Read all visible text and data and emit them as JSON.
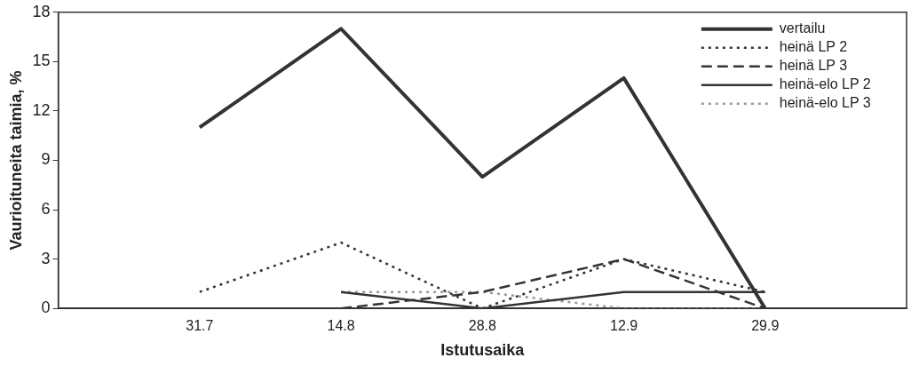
{
  "chart_data": {
    "type": "line",
    "xlabel": "Istutusaika",
    "ylabel": "Vaurioituneita taimia, %",
    "categories": [
      null,
      "31.7",
      "14.8",
      "28.8",
      "12.9",
      "29.9",
      null
    ],
    "series": [
      {
        "name": "vertailu",
        "color": "#333333",
        "line_style": "solid",
        "values": [
          null,
          11,
          17,
          8,
          14,
          0,
          null
        ]
      },
      {
        "name": "heinä LP 2",
        "color": "#333333",
        "line_style": "dotted",
        "values": [
          null,
          1,
          4,
          0,
          3,
          1,
          null
        ]
      },
      {
        "name": "heinä LP 3",
        "color": "#333333",
        "line_style": "dashed",
        "values": [
          null,
          null,
          0,
          1,
          3,
          0,
          null
        ]
      },
      {
        "name": "heinä-elo LP 2",
        "color": "#333333",
        "line_style": "solid",
        "values": [
          null,
          null,
          1,
          0,
          1,
          1,
          null
        ]
      },
      {
        "name": "heinä-elo LP 3",
        "color": "#999999",
        "line_style": "dotted",
        "values": [
          null,
          null,
          1,
          1,
          0,
          0,
          null
        ]
      }
    ],
    "ylim": [
      0,
      18
    ],
    "yticks": [
      0,
      3,
      6,
      9,
      12,
      15,
      18
    ],
    "grid": false,
    "legend": "top right",
    "marker": "none"
  }
}
